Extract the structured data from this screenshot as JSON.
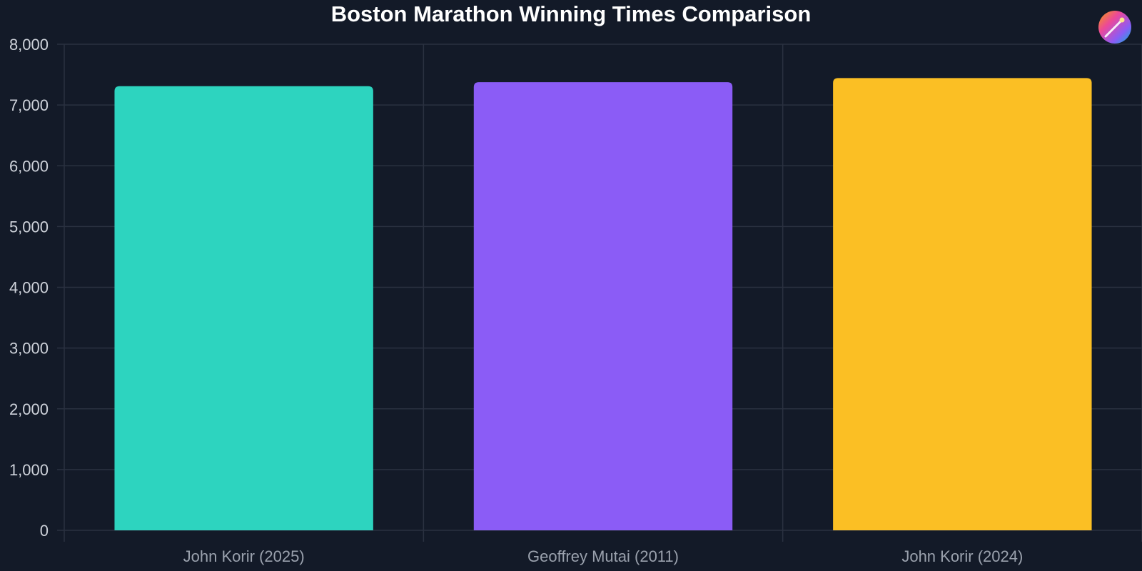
{
  "chart_data": {
    "type": "bar",
    "title": "Boston Marathon Winning Times Comparison",
    "xlabel": "",
    "ylabel": "",
    "categories": [
      "John Korir (2025)",
      "Geoffrey Mutai (2011)",
      "John Korir (2024)"
    ],
    "values": [
      7310,
      7376,
      7443
    ],
    "colors": [
      "#2dd4bf",
      "#8b5cf6",
      "#fbbf24"
    ],
    "ylim": [
      0,
      8000
    ],
    "yticks": [
      0,
      1000,
      2000,
      3000,
      4000,
      5000,
      6000,
      7000,
      8000
    ],
    "ytick_labels": [
      "0",
      "1,000",
      "2,000",
      "3,000",
      "4,000",
      "5,000",
      "6,000",
      "7,000",
      "8,000"
    ],
    "grid": true,
    "legend": "none"
  },
  "toolbar": {
    "icon": "magic-wand-icon"
  },
  "colors": {
    "background": "#131a28",
    "grid": "#2a3140"
  }
}
